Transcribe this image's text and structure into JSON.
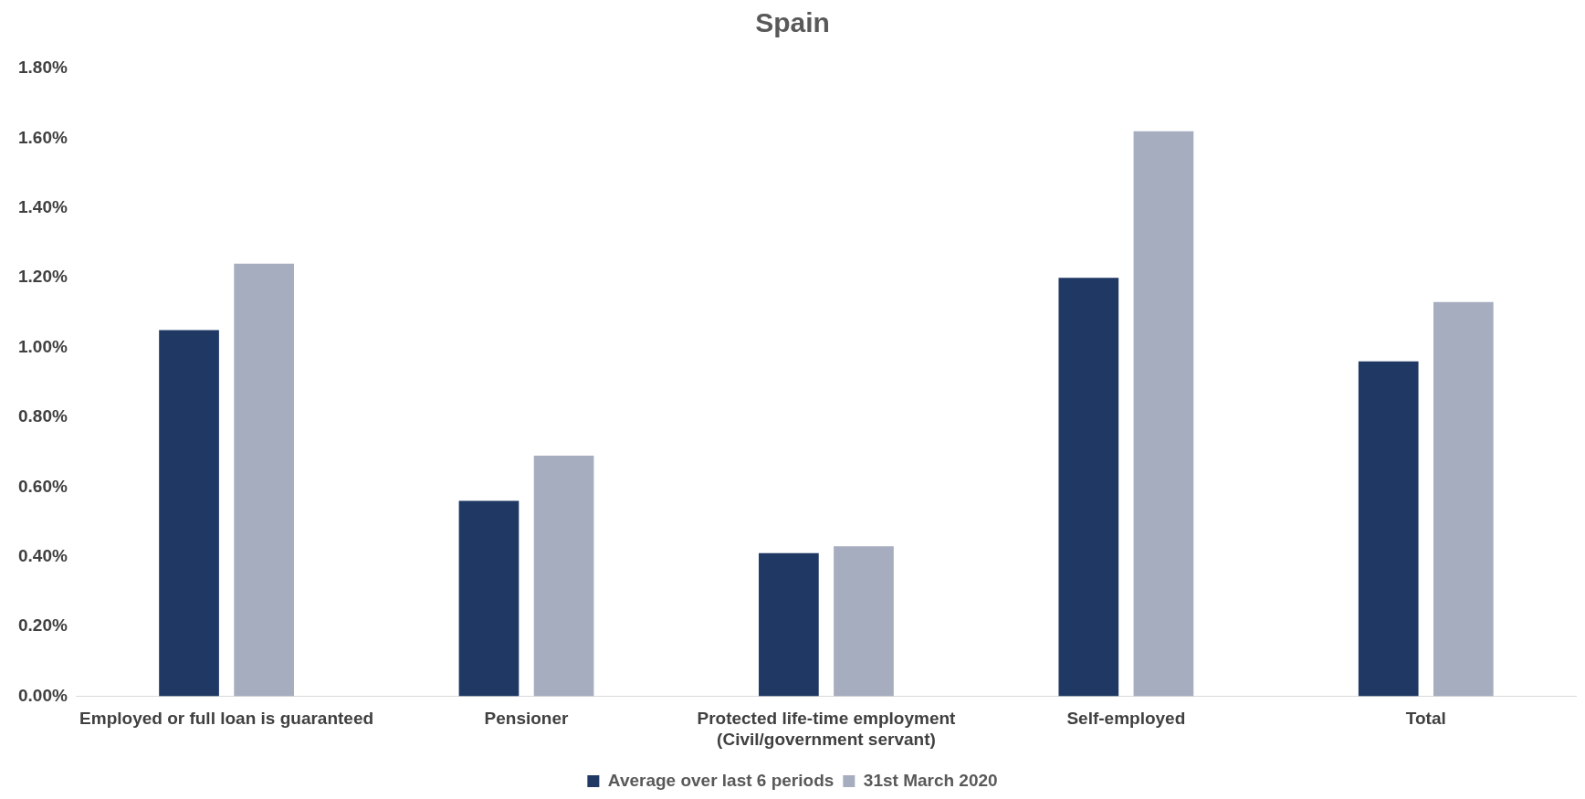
{
  "chart_data": {
    "type": "bar",
    "title": "Spain",
    "categories": [
      "Employed or full loan is guaranteed",
      "Pensioner",
      "Protected life-time employment\n(Civil/government servant)",
      "Self-employed",
      "Total"
    ],
    "series": [
      {
        "name": "Average over last 6 periods",
        "color": "#1f3864",
        "values": [
          1.05,
          0.56,
          0.41,
          1.2,
          0.96
        ]
      },
      {
        "name": "31st March 2020",
        "color": "#a6adbf",
        "values": [
          1.24,
          0.69,
          0.43,
          1.62,
          1.13
        ]
      }
    ],
    "ylim": [
      0,
      1.8
    ],
    "yticks": [
      {
        "value": 0,
        "label": "0.00%"
      },
      {
        "value": 0.2,
        "label": "0.20%"
      },
      {
        "value": 0.4,
        "label": "0.40%"
      },
      {
        "value": 0.6,
        "label": "0.60%"
      },
      {
        "value": 0.8,
        "label": "0.80%"
      },
      {
        "value": 1,
        "label": "1.00%"
      },
      {
        "value": 1.2,
        "label": "1.20%"
      },
      {
        "value": 1.4,
        "label": "1.40%"
      },
      {
        "value": 1.6,
        "label": "1.60%"
      },
      {
        "value": 1.8,
        "label": "1.80%"
      }
    ],
    "grid": false,
    "legend": "bottom"
  }
}
